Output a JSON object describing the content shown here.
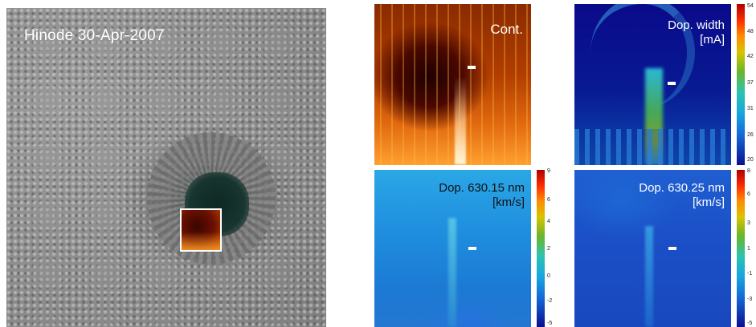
{
  "overview": {
    "title": "Hinode 30-Apr-2007"
  },
  "panels": {
    "continuum": {
      "label": "Cont."
    },
    "doppler_width": {
      "label_line1": "Dop. width",
      "label_line2": "[mA]"
    },
    "doppler_630_15": {
      "label_line1": "Dop. 630.15 nm",
      "label_line2": "[km/s]"
    },
    "doppler_630_25": {
      "label_line1": "Dop. 630.25 nm",
      "label_line2": "[km/s]"
    }
  },
  "colorbars": {
    "doppler_width": [
      "54",
      "48",
      "42",
      "37",
      "31",
      "26",
      "20"
    ],
    "doppler_630_15": [
      "9",
      "6",
      "4",
      "2",
      "0",
      "-2",
      "-5"
    ],
    "doppler_630_25": [
      "8",
      "6",
      "3",
      "1",
      "-1",
      "-3",
      "-5"
    ]
  },
  "colors": {
    "label_light": "#ffffff",
    "label_dark": "#111111",
    "background": "#ffffff"
  }
}
